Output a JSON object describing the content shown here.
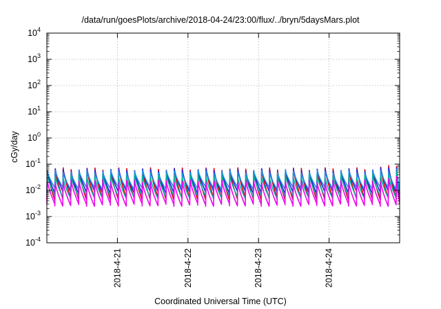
{
  "chart_data": {
    "type": "line",
    "title": "/data/run/goesPlots/archive/2018-04-24/23:00/flux/../bryn/5daysMars.plot",
    "xlabel": "Coordinated Universal Time (UTC)",
    "ylabel": "cGy/day",
    "xlim": [
      "2018-04-20T00:00",
      "2018-04-25T00:00"
    ],
    "ylim": [
      0.0001,
      10000
    ],
    "yscale": "log",
    "grid": true,
    "xticks": [
      "2018-4-21",
      "2018-4-22",
      "2018-4-23",
      "2018-4-24"
    ],
    "yticks": [
      {
        "base": "10",
        "exp": "-4"
      },
      {
        "base": "10",
        "exp": "-3"
      },
      {
        "base": "10",
        "exp": "-2"
      },
      {
        "base": "10",
        "exp": "-1"
      },
      {
        "base": "10",
        "exp": "0"
      },
      {
        "base": "10",
        "exp": "1"
      },
      {
        "base": "10",
        "exp": "2"
      },
      {
        "base": "10",
        "exp": "3"
      },
      {
        "base": "10",
        "exp": "4"
      }
    ],
    "sawtooth_period_hours": 2.7,
    "series": [
      {
        "color": "#e00000",
        "peak": 0.065,
        "trough": 0.0048,
        "end_peak": 0.095
      },
      {
        "color": "#2222dd",
        "peak": 0.06,
        "trough": 0.0085,
        "end_peak": 0.085
      },
      {
        "color": "#1f8fe0",
        "peak": 0.052,
        "trough": 0.012,
        "end_peak": 0.07
      },
      {
        "color": "#00b39b",
        "peak": 0.035,
        "trough": 0.0055,
        "end_peak": 0.05
      },
      {
        "color": "#ee00ee",
        "peak": 0.022,
        "trough": 0.0028,
        "end_peak": 0.032
      }
    ]
  }
}
